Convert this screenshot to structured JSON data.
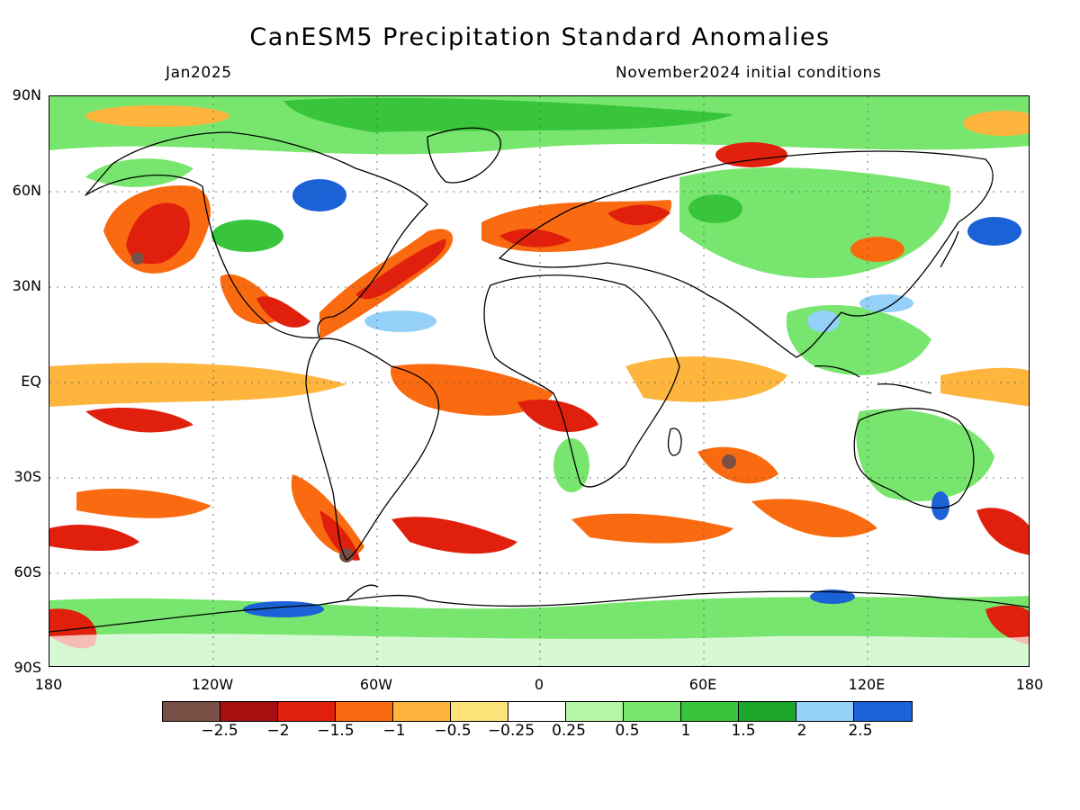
{
  "title": "CanESM5 Precipitation Standard Anomalies",
  "subtitle_left": "Jan2025",
  "subtitle_right": "November2024 initial conditions",
  "lat_labels": [
    "90N",
    "60N",
    "30N",
    "EQ",
    "30S",
    "60S",
    "90S"
  ],
  "lon_labels": [
    "180",
    "120W",
    "60W",
    "0",
    "60E",
    "120E",
    "180"
  ],
  "colorbar": {
    "colors": [
      "#7a4f45",
      "#a50f0f",
      "#e0200c",
      "#fa6a10",
      "#fdb53e",
      "#fde27a",
      "#ffffff",
      "#b4f5a6",
      "#78e66e",
      "#38c53c",
      "#1ea62a",
      "#94d0f7",
      "#1a62d6"
    ],
    "labels": [
      "-2.5",
      "-2",
      "-1.5",
      "-1",
      "-0.5",
      "-0.25",
      "0.25",
      "0.5",
      "1",
      "1.5",
      "2",
      "2.5"
    ]
  }
}
